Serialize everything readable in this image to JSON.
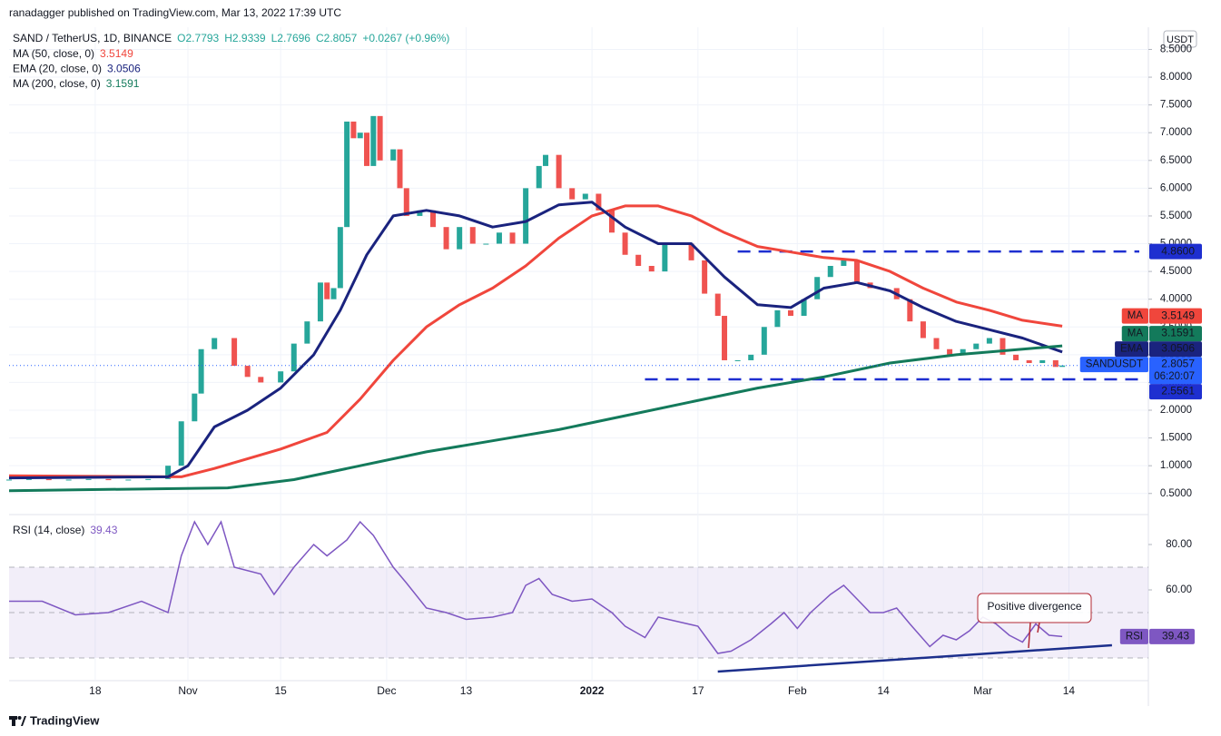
{
  "header": {
    "attribution": "ranadagger published on TradingView.com, Mar 13, 2022 17:39 UTC"
  },
  "footer": {
    "brand": "TradingView"
  },
  "chart_data": [
    {
      "type": "line",
      "title": "SAND / TetherUS, 1D, BINANCE",
      "ohlc": [
        "O2.7793",
        "H2.9339",
        "L2.7696",
        "C2.8057",
        "+0.0267 (+0.96%)"
      ],
      "currency": "USDT",
      "grid": true,
      "xlim": [
        -13,
        159
      ],
      "ylim": [
        0.12,
        8.9
      ],
      "yticks": [
        {
          "value": 0.5,
          "label": "0.5000"
        },
        {
          "value": 1,
          "label": "1.0000"
        },
        {
          "value": 1.5,
          "label": "1.5000"
        },
        {
          "value": 2,
          "label": "2.0000"
        },
        {
          "value": 2.5,
          "label": "2.5000"
        },
        {
          "value": 3,
          "label": "3.0000"
        },
        {
          "value": 3.5,
          "label": "3.5000"
        },
        {
          "value": 4,
          "label": "4.0000"
        },
        {
          "value": 4.5,
          "label": "4.5000"
        },
        {
          "value": 5,
          "label": "5.0000"
        },
        {
          "value": 5.5,
          "label": "5.5000"
        },
        {
          "value": 6,
          "label": "6.0000"
        },
        {
          "value": 6.5,
          "label": "6.5000"
        },
        {
          "value": 7,
          "label": "7.0000"
        },
        {
          "value": 7.5,
          "label": "7.5000"
        },
        {
          "value": 8,
          "label": "8.0000"
        },
        {
          "value": 8.5,
          "label": "8.5000"
        }
      ],
      "series": [
        {
          "name": "SANDUSDT",
          "style": "candle",
          "color": "#2962ff",
          "up_color": "#26a69a",
          "down_color": "#ef5350",
          "countdown": "06:20:07",
          "x": [
            -13,
            -10,
            -7,
            -4,
            -1,
            2,
            5,
            8,
            11,
            13,
            15,
            16,
            18,
            21,
            23,
            25,
            28,
            30,
            32,
            34,
            35,
            36,
            37,
            38,
            39,
            40,
            41,
            42,
            43,
            45,
            46,
            47,
            49,
            51,
            53,
            55,
            57,
            59,
            61,
            63,
            65,
            67,
            68,
            70,
            72,
            74,
            76,
            78,
            80,
            82,
            84,
            86,
            88,
            90,
            92,
            94,
            95,
            97,
            99,
            101,
            103,
            105,
            107,
            109,
            111,
            113,
            115,
            117,
            119,
            121,
            123,
            125,
            127,
            129,
            131,
            133,
            135,
            137,
            139,
            141,
            143,
            145,
            146
          ],
          "values": [
            0.75,
            0.76,
            0.74,
            0.75,
            0.76,
            0.74,
            0.75,
            0.76,
            1.0,
            1.8,
            2.3,
            3.1,
            3.3,
            2.8,
            2.6,
            2.5,
            2.7,
            3.2,
            3.6,
            4.3,
            4.0,
            4.2,
            5.3,
            7.2,
            6.9,
            7.0,
            6.4,
            7.3,
            6.5,
            6.7,
            6.0,
            5.5,
            5.6,
            5.3,
            4.9,
            5.3,
            5.0,
            5.0,
            5.2,
            5.0,
            6.0,
            6.4,
            6.6,
            6.0,
            5.8,
            5.9,
            5.6,
            5.2,
            4.8,
            4.6,
            4.5,
            5.0,
            5.0,
            4.7,
            4.1,
            3.7,
            2.9,
            2.9,
            3.0,
            3.5,
            3.8,
            3.7,
            4.0,
            4.4,
            4.6,
            4.7,
            4.3,
            4.2,
            4.2,
            4.0,
            3.6,
            3.3,
            3.1,
            3.0,
            3.1,
            3.2,
            3.3,
            3.0,
            2.9,
            2.85,
            2.9,
            2.78,
            2.8057
          ]
        },
        {
          "name": "MA (50, close, 0)",
          "tag": "MA",
          "style": "line",
          "color": "#f0463c",
          "x": [
            -13,
            13,
            18,
            28,
            35,
            40,
            45,
            50,
            55,
            60,
            65,
            70,
            75,
            80,
            85,
            90,
            95,
            100,
            105,
            110,
            115,
            120,
            125,
            130,
            135,
            140,
            146
          ],
          "values": [
            0.82,
            0.8,
            0.95,
            1.3,
            1.6,
            2.2,
            2.9,
            3.5,
            3.9,
            4.2,
            4.6,
            5.1,
            5.5,
            5.68,
            5.68,
            5.5,
            5.2,
            4.95,
            4.85,
            4.75,
            4.7,
            4.5,
            4.2,
            3.95,
            3.8,
            3.62,
            3.5149
          ]
        },
        {
          "name": "EMA (20, close, 0)",
          "tag": "EMA",
          "style": "line",
          "color": "#1a237e",
          "x": [
            -13,
            11,
            14,
            18,
            23,
            28,
            33,
            37,
            41,
            45,
            50,
            55,
            60,
            65,
            70,
            75,
            80,
            85,
            90,
            95,
            100,
            105,
            110,
            115,
            120,
            125,
            130,
            135,
            140,
            146
          ],
          "values": [
            0.78,
            0.8,
            1.0,
            1.7,
            2.0,
            2.4,
            3.0,
            3.8,
            4.8,
            5.5,
            5.6,
            5.5,
            5.3,
            5.4,
            5.7,
            5.75,
            5.3,
            5.0,
            5.0,
            4.4,
            3.9,
            3.85,
            4.2,
            4.3,
            4.15,
            3.85,
            3.6,
            3.45,
            3.3,
            3.0506
          ]
        },
        {
          "name": "MA (200, close, 0)",
          "tag": "MA",
          "style": "line",
          "color": "#137a5b",
          "x": [
            -13,
            20,
            30,
            40,
            50,
            60,
            70,
            80,
            90,
            100,
            110,
            120,
            130,
            140,
            146
          ],
          "values": [
            0.55,
            0.6,
            0.75,
            1.0,
            1.25,
            1.45,
            1.65,
            1.9,
            2.15,
            2.4,
            2.6,
            2.85,
            3.0,
            3.1,
            3.1591
          ]
        }
      ],
      "level_color": "#1e2fd0",
      "levels": [
        {
          "value": 4.86,
          "label": "4.8600",
          "from": 97
        },
        {
          "value": 2.5561,
          "label": "2.5561",
          "from": 83
        }
      ]
    },
    {
      "type": "line",
      "title": "RSI (14, close)",
      "tag": "RSI",
      "grid": true,
      "xlim": [
        -13,
        159
      ],
      "ylim": [
        20,
        92
      ],
      "yticks": [
        {
          "value": 60,
          "label": "60.00"
        },
        {
          "value": 80,
          "label": "80.00"
        }
      ],
      "xticks": [
        {
          "value": 0,
          "label": "18"
        },
        {
          "value": 14,
          "label": "Nov"
        },
        {
          "value": 28,
          "label": "15"
        },
        {
          "value": 44,
          "label": "Dec"
        },
        {
          "value": 56,
          "label": "13"
        },
        {
          "value": 75,
          "label": "2022"
        },
        {
          "value": 91,
          "label": "17"
        },
        {
          "value": 106,
          "label": "Feb"
        },
        {
          "value": 119,
          "label": "14"
        },
        {
          "value": 134,
          "label": "Mar"
        },
        {
          "value": 147,
          "label": "14"
        }
      ],
      "band": [
        30,
        70
      ],
      "midline": 50,
      "series": [
        {
          "color": "#7e57c2",
          "x": [
            -13,
            -8,
            -3,
            2,
            7,
            11,
            13,
            15,
            17,
            19,
            21,
            25,
            27,
            30,
            33,
            35,
            38,
            40,
            42,
            45,
            47,
            50,
            53,
            56,
            60,
            63,
            65,
            67,
            69,
            72,
            75,
            78,
            80,
            83,
            85,
            88,
            91,
            94,
            96,
            99,
            102,
            104,
            106,
            108,
            111,
            113,
            115,
            117,
            119,
            121,
            123,
            126,
            128,
            130,
            132,
            134,
            136,
            138,
            140,
            142,
            144,
            146
          ],
          "values": [
            55,
            55,
            49,
            50,
            55,
            50,
            75,
            90,
            80,
            90,
            70,
            67,
            58,
            70,
            80,
            75,
            82,
            90,
            84,
            70,
            63,
            52,
            50,
            47,
            48,
            50,
            62,
            65,
            58,
            55,
            56,
            50,
            44,
            39,
            48,
            46,
            44,
            32,
            33,
            38,
            45,
            50,
            43,
            50,
            58,
            62,
            56,
            50,
            50,
            52,
            45,
            35,
            40,
            38,
            42,
            48,
            45,
            40,
            37,
            45,
            40,
            39.43
          ]
        }
      ],
      "trendline": {
        "x": [
          94,
          153.5
        ],
        "y": [
          24,
          35.6
        ],
        "color": "#1c2f8c"
      },
      "annotation": {
        "text": "Positive divergence",
        "color": "#b22833"
      }
    }
  ]
}
